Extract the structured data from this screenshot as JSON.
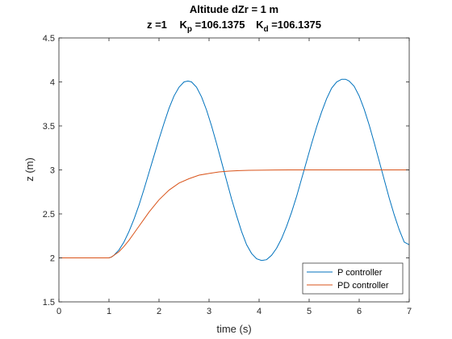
{
  "chart_data": {
    "type": "line",
    "title": "Altitude dZr = 1 m",
    "subtitle_parts": {
      "z_label": "z =1",
      "kp_prefix": "K",
      "kp_sub": "p",
      "kp_value": " =106.1375",
      "kd_prefix": "K",
      "kd_sub": "d",
      "kd_value": " =106.1375"
    },
    "xlabel": "time (s)",
    "ylabel": "z (m)",
    "xlim": [
      0,
      7
    ],
    "ylim": [
      1.5,
      4.5
    ],
    "xticks": [
      0,
      1,
      2,
      3,
      4,
      5,
      6,
      7
    ],
    "xtick_labels": [
      "0",
      "1",
      "2",
      "3",
      "4",
      "5",
      "6",
      "7"
    ],
    "yticks": [
      1.5,
      2,
      2.5,
      3,
      3.5,
      4,
      4.5
    ],
    "ytick_labels": [
      "1.5",
      "2",
      "2.5",
      "3",
      "3.5",
      "4",
      "4.5"
    ],
    "grid": false,
    "legend_position": "bottom-right",
    "series": [
      {
        "name": "P controller",
        "color": "#0072BD",
        "x": [
          0,
          0.5,
          1.0,
          1.05,
          1.1,
          1.2,
          1.3,
          1.4,
          1.5,
          1.6,
          1.7,
          1.8,
          1.9,
          2.0,
          2.1,
          2.2,
          2.3,
          2.4,
          2.5,
          2.58,
          2.65,
          2.75,
          2.85,
          2.95,
          3.05,
          3.15,
          3.25,
          3.35,
          3.45,
          3.55,
          3.65,
          3.75,
          3.85,
          3.95,
          4.05,
          4.15,
          4.25,
          4.35,
          4.45,
          4.55,
          4.65,
          4.75,
          4.85,
          4.95,
          5.05,
          5.15,
          5.25,
          5.35,
          5.45,
          5.55,
          5.65,
          5.73,
          5.8,
          5.9,
          6.0,
          6.1,
          6.2,
          6.3,
          6.4,
          6.5,
          6.6,
          6.7,
          6.8,
          6.9,
          7.0
        ],
        "y": [
          2.0,
          2.0,
          2.0,
          2.01,
          2.03,
          2.09,
          2.18,
          2.3,
          2.44,
          2.6,
          2.78,
          2.97,
          3.16,
          3.35,
          3.53,
          3.7,
          3.84,
          3.94,
          4.0,
          4.01,
          4.0,
          3.94,
          3.83,
          3.68,
          3.5,
          3.3,
          3.09,
          2.88,
          2.67,
          2.48,
          2.3,
          2.15,
          2.05,
          1.99,
          1.97,
          1.98,
          2.03,
          2.11,
          2.22,
          2.36,
          2.52,
          2.7,
          2.9,
          3.1,
          3.3,
          3.49,
          3.66,
          3.81,
          3.93,
          4.0,
          4.03,
          4.03,
          4.01,
          3.95,
          3.84,
          3.69,
          3.51,
          3.31,
          3.1,
          2.89,
          2.68,
          2.49,
          2.32,
          2.18,
          2.15
        ]
      },
      {
        "name": "PD controller",
        "color": "#D95319",
        "x": [
          0,
          0.5,
          1.0,
          1.05,
          1.1,
          1.2,
          1.3,
          1.4,
          1.5,
          1.6,
          1.7,
          1.8,
          1.9,
          2.0,
          2.2,
          2.4,
          2.6,
          2.8,
          3.0,
          3.2,
          3.4,
          3.6,
          3.8,
          4.0,
          4.3,
          4.6,
          5.0,
          5.5,
          6.0,
          6.5,
          7.0
        ],
        "y": [
          2.0,
          2.0,
          2.0,
          2.01,
          2.03,
          2.07,
          2.13,
          2.2,
          2.28,
          2.36,
          2.44,
          2.52,
          2.59,
          2.66,
          2.77,
          2.85,
          2.9,
          2.94,
          2.96,
          2.977,
          2.986,
          2.992,
          2.995,
          2.997,
          2.999,
          3.0,
          3.0,
          3.0,
          3.0,
          3.0,
          3.0
        ]
      }
    ]
  }
}
